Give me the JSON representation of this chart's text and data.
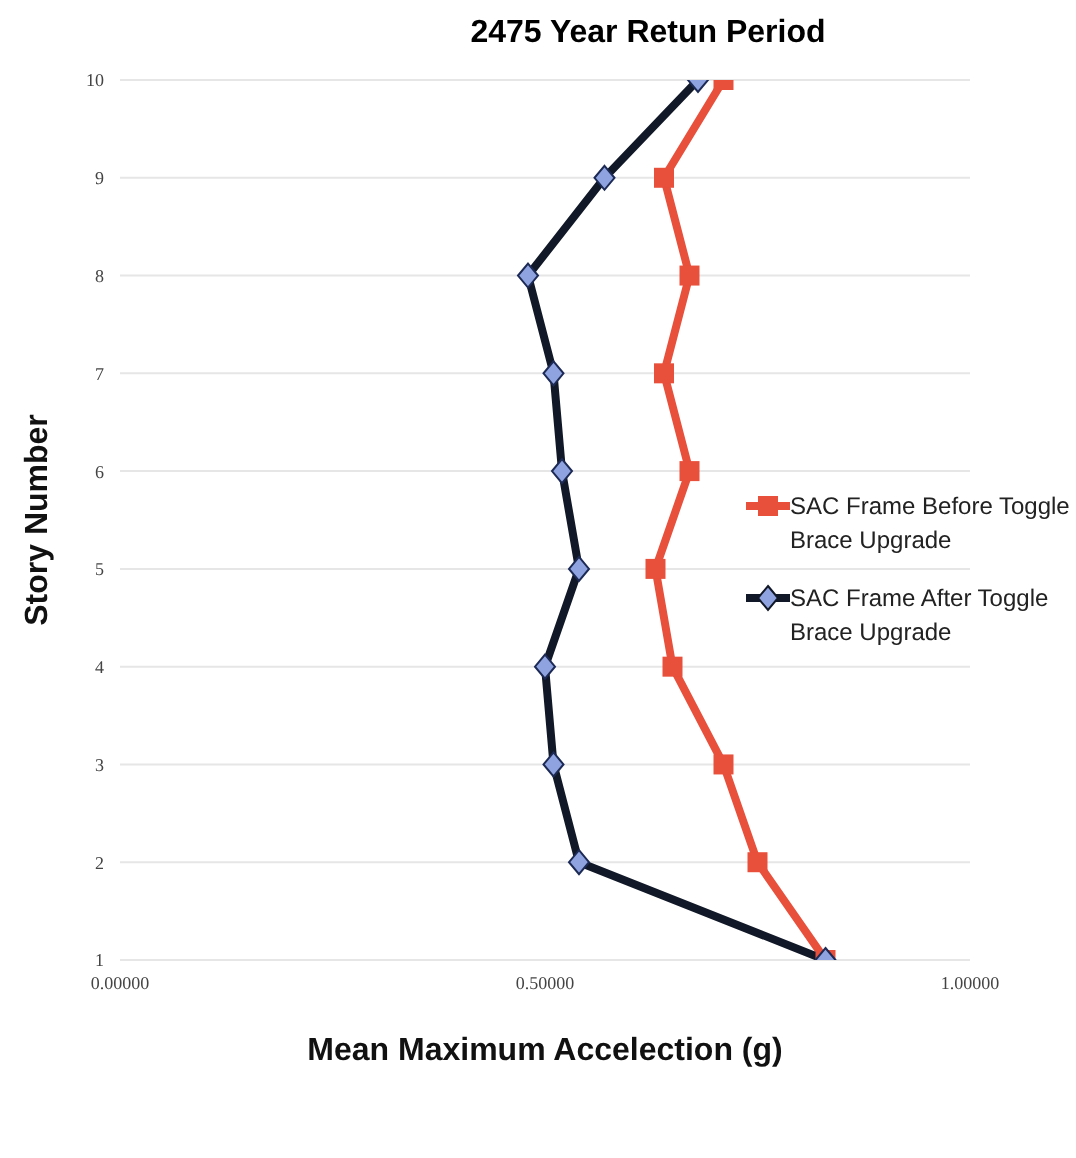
{
  "chart_data": {
    "type": "line",
    "title": "2475 Year Retun Period",
    "xlabel": "Mean Maximum Accelection (g)",
    "ylabel": "Story Number",
    "xlim": [
      0,
      1
    ],
    "xticks": [
      {
        "value": 0,
        "label": "0.00000"
      },
      {
        "value": 0.5,
        "label": "0.50000"
      },
      {
        "value": 1,
        "label": "1.00000"
      }
    ],
    "ylim": [
      1,
      10
    ],
    "yticks": [
      1,
      2,
      3,
      4,
      5,
      6,
      7,
      8,
      9,
      10
    ],
    "grid": "y",
    "legend": "right",
    "series": [
      {
        "name": "SAC Frame Before Toggle Brace Upgrade",
        "color": "#e8503c",
        "marker": "square",
        "x": [
          0.83,
          0.75,
          0.71,
          0.65,
          0.63,
          0.67,
          0.64,
          0.67,
          0.64,
          0.71
        ],
        "values": [
          1,
          2,
          3,
          4,
          5,
          6,
          7,
          8,
          9,
          10
        ]
      },
      {
        "name": "SAC Frame After Toggle Brace Upgrade",
        "color": "#111827",
        "marker": "diamond",
        "x": [
          0.83,
          0.54,
          0.51,
          0.5,
          0.54,
          0.52,
          0.51,
          0.48,
          0.57,
          0.68
        ],
        "values": [
          1,
          2,
          3,
          4,
          5,
          6,
          7,
          8,
          9,
          10
        ]
      }
    ]
  }
}
